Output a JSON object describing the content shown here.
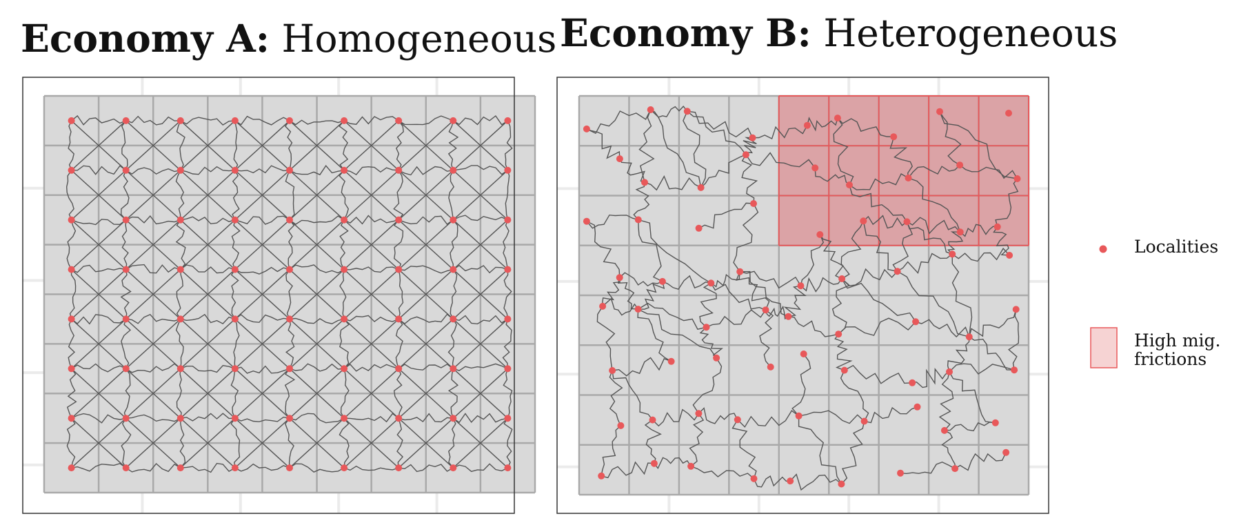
{
  "panels": [
    {
      "id": "A",
      "title_bold": "Economy A:",
      "title_rest": " Homogeneous",
      "high_friction_region": null
    },
    {
      "id": "B",
      "title_bold": "Economy B:",
      "title_rest": " Heterogeneous",
      "high_friction_region": {
        "cols": [
          4,
          8
        ],
        "rows": [
          0,
          2
        ]
      }
    }
  ],
  "grid": {
    "cols": 9,
    "rows": 8
  },
  "legend": {
    "localities": "Localities",
    "high_friction": "High mig. frictions"
  },
  "colors": {
    "point": "#e8585a",
    "region_fill": "#dba3a6",
    "region_stroke": "#e8585a",
    "panel_fill": "#d9d9d9",
    "grid_line": "#a9a9a9",
    "road": "#555555",
    "frame": "#333333"
  }
}
